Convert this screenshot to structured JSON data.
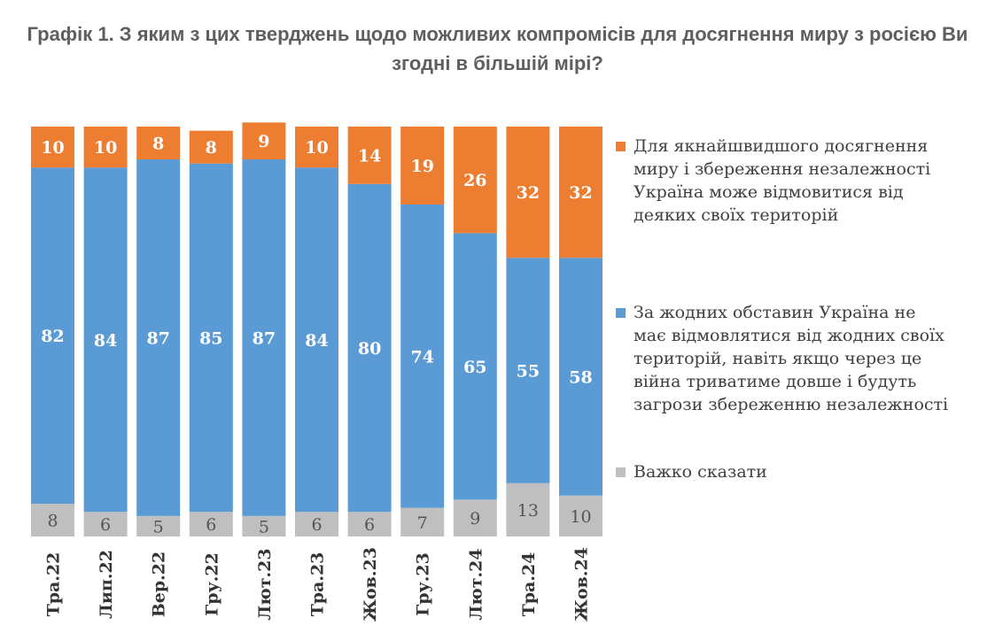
{
  "title": "Графік 1. З яким з цих тверджень щодо можливих компромісів для досягнення миру з росією Ви згодні в більшій мірі?",
  "colors": {
    "orange": "#ED7D31",
    "blue": "#5B9BD5",
    "gray": "#BFBFBF"
  },
  "chart_data": {
    "type": "bar",
    "stacked": true,
    "categories": [
      "Тра.22",
      "Лип.22",
      "Вер.22",
      "Гру.22",
      "Лют.23",
      "Тра.23",
      "Жов.23",
      "Гру.23",
      "Лют.24",
      "Тра.24",
      "Жов.24"
    ],
    "series": [
      {
        "name": "Важко сказати",
        "color": "#BFBFBF",
        "values": [
          8,
          6,
          5,
          6,
          5,
          6,
          6,
          7,
          9,
          13,
          10
        ]
      },
      {
        "name": "За жодних обставин Україна не має відмовлятися від жодних своїх територій, навіть якщо через це війна триватиме довше і будуть загрози збереженню незалежності",
        "color": "#5B9BD5",
        "values": [
          82,
          84,
          87,
          85,
          87,
          84,
          80,
          74,
          65,
          55,
          58
        ]
      },
      {
        "name": "Для якнайшвидшого досягнення миру і збереження незалежності Україна може відмовитися від деяких своїх територій",
        "color": "#ED7D31",
        "values": [
          10,
          10,
          8,
          8,
          9,
          10,
          14,
          19,
          26,
          32,
          32
        ]
      }
    ],
    "ylim": [
      0,
      100
    ],
    "legend_position": "right",
    "grid": false
  }
}
